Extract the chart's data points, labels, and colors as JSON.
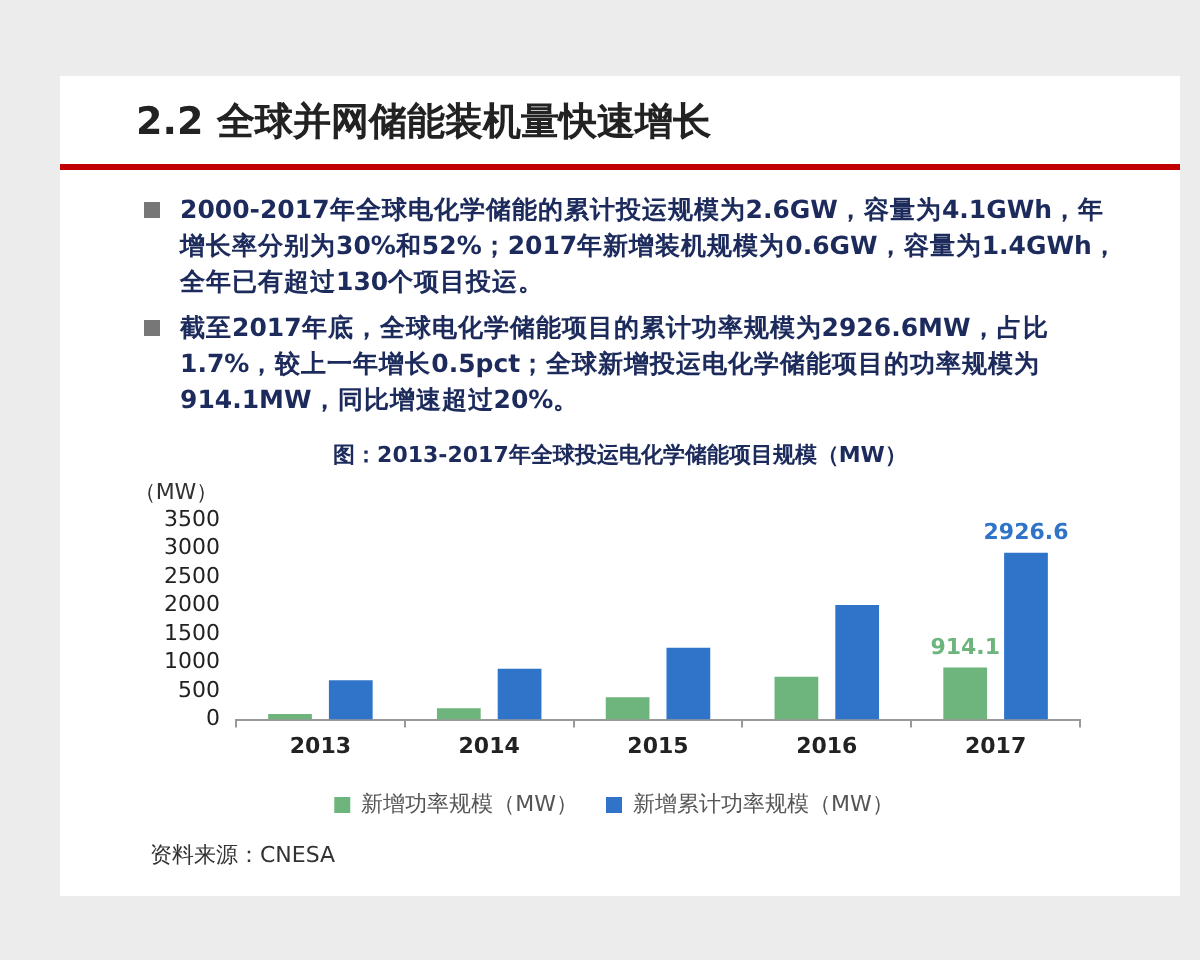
{
  "chart_data": {
    "type": "bar",
    "title": "2.2 全球并网储能装机量快速增长",
    "subtitle": "图：2013-2017年全球投运电化学储能项目规模（MW）",
    "ylabel": "（MW）",
    "annotations": [
      "2000-2017年全球电化学储能的累计投运规模为2.6GW，容量为4.1GWh，年增长率分别为30%和52%；2017年新增装机规模为0.6GW，容量为1.4GWh，全年已有超过130个项目投运。",
      "截至2017年底，全球电化学储能项目的累计功率规模为2926.6MW，占比1.7%，较上一年增长0.5pct；全球新增投运电化学储能项目的功率规模为914.1MW，同比增速超过20%。",
      "资料来源：CNESA"
    ],
    "categories": [
      "2013",
      "2014",
      "2015",
      "2016",
      "2017"
    ],
    "series": [
      {
        "name": "新增功率规模（MW）",
        "color": "#6db57c",
        "values": [
          100,
          200,
          390,
          750,
          914.1
        ],
        "value_labels": [
          null,
          null,
          null,
          null,
          "914.1"
        ]
      },
      {
        "name": "新增累计功率规模（MW）",
        "color": "#2f74c8",
        "values": [
          690,
          890,
          1260,
          2010,
          2926.6
        ],
        "value_labels": [
          null,
          null,
          null,
          null,
          "2926.6"
        ]
      }
    ],
    "ylim": [
      0,
      3500
    ],
    "yticks": [
      0,
      500,
      1000,
      1500,
      2000,
      2500,
      3000,
      3500
    ],
    "legend": "bottom"
  }
}
